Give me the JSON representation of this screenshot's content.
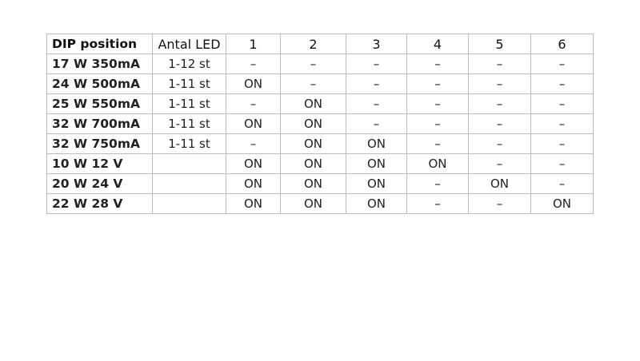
{
  "table": {
    "headers": [
      "DIP position",
      "Antal LED",
      "1",
      "2",
      "3",
      "4",
      "5",
      "6"
    ],
    "rows": [
      [
        "17 W 350mA",
        "1-12 st",
        "–",
        "–",
        "–",
        "–",
        "–",
        "–"
      ],
      [
        "24 W 500mA",
        "1-11 st",
        "ON",
        "–",
        "–",
        "–",
        "–",
        "–"
      ],
      [
        "25 W 550mA",
        "1-11 st",
        "–",
        "ON",
        "–",
        "–",
        "–",
        "–"
      ],
      [
        "32 W 700mA",
        "1-11 st",
        "ON",
        "ON",
        "–",
        "–",
        "–",
        "–"
      ],
      [
        "32 W 750mA",
        "1-11 st",
        "–",
        "ON",
        "ON",
        "–",
        "–",
        "–"
      ],
      [
        "10 W 12 V",
        "",
        "ON",
        "ON",
        "ON",
        "ON",
        "–",
        "–"
      ],
      [
        "20 W 24 V",
        "",
        "ON",
        "ON",
        "ON",
        "–",
        "ON",
        "–"
      ],
      [
        "22 W 28 V",
        "",
        "ON",
        "ON",
        "ON",
        "–",
        "–",
        "ON"
      ]
    ]
  }
}
